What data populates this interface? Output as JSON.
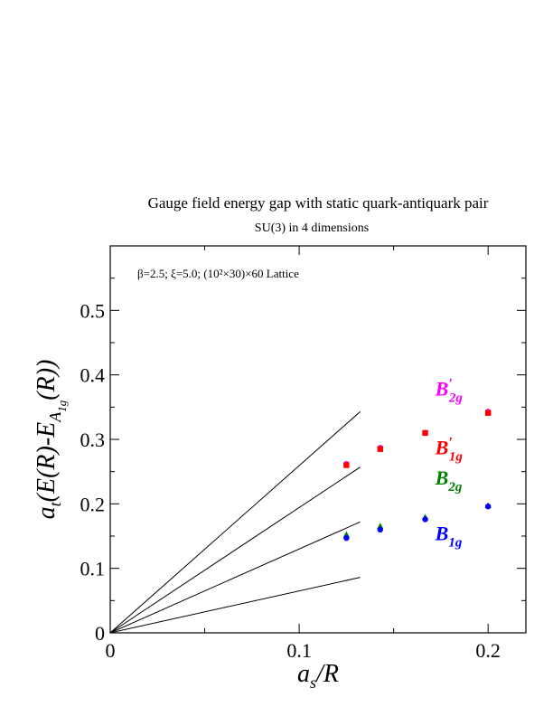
{
  "chart_data": {
    "type": "scatter",
    "title": "Gauge field energy gap with static quark-antiquark pair",
    "subtitle": "SU(3) in 4 dimensions",
    "annotation": "β=2.5;  ξ=5.0; (10²×30)×60 Lattice",
    "xlabel": {
      "main": "a",
      "sub": "s",
      "rest": "/R"
    },
    "ylabel": {
      "main": "a",
      "sub": "t",
      "rest": "(E(R)-E",
      "sub2": "A",
      "subsub": "1g",
      "end": "(R))"
    },
    "xlim": [
      0,
      0.22
    ],
    "ylim": [
      0,
      0.6
    ],
    "x_ticks": [
      0,
      0.1,
      0.2
    ],
    "x_tick_labels": [
      "0",
      "0.1",
      "0.2"
    ],
    "y_ticks": [
      0,
      0.1,
      0.2,
      0.3,
      0.4,
      0.5
    ],
    "y_tick_labels": [
      "0",
      "0.1",
      "0.2",
      "0.3",
      "0.4",
      "0.5"
    ],
    "x": [
      0.125,
      0.1429,
      0.1667,
      0.2
    ],
    "series": [
      {
        "name": "B′2g",
        "color": "#ff00ff",
        "marker": "circle",
        "values": [
          0.262,
          0.287,
          0.31,
          0.343
        ]
      },
      {
        "name": "B′1g",
        "color": "#ff0000",
        "marker": "square",
        "values": [
          0.26,
          0.285,
          0.31,
          0.341
        ]
      },
      {
        "name": "B2g",
        "color": "#008000",
        "marker": "triangle",
        "values": [
          0.152,
          0.165,
          0.179,
          0.197
        ]
      },
      {
        "name": "B1g",
        "color": "#0000ff",
        "marker": "circle",
        "values": [
          0.147,
          0.16,
          0.176,
          0.196
        ]
      }
    ],
    "reference_lines": [
      {
        "x": [
          0,
          0.1323
        ],
        "y": [
          0,
          0.343
        ]
      },
      {
        "x": [
          0,
          0.1323
        ],
        "y": [
          0,
          0.257
        ]
      },
      {
        "x": [
          0,
          0.1323
        ],
        "y": [
          0,
          0.172
        ]
      },
      {
        "x": [
          0,
          0.1323
        ],
        "y": [
          0,
          0.086
        ]
      }
    ],
    "labels": [
      {
        "text": "B",
        "sub": "2g",
        "prime": true,
        "color": "#ff00ff",
        "x": 0.172,
        "y": 0.368
      },
      {
        "text": "B",
        "sub": "1g",
        "prime": true,
        "color": "#ff0000",
        "x": 0.172,
        "y": 0.277
      },
      {
        "text": "B",
        "sub": "2g",
        "prime": false,
        "color": "#008000",
        "x": 0.172,
        "y": 0.23
      },
      {
        "text": "B",
        "sub": "1g",
        "prime": false,
        "color": "#0000ff",
        "x": 0.172,
        "y": 0.144
      }
    ]
  }
}
